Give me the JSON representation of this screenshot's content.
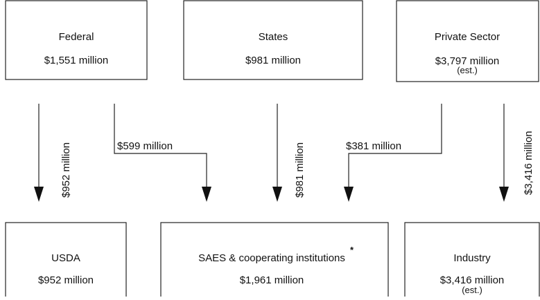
{
  "sources": [
    {
      "label": "Federal",
      "amount": "$1,551 million"
    },
    {
      "label": "States",
      "amount": "$981 million"
    },
    {
      "label": "Private Sector",
      "amount": "$3,797 million",
      "note": "(est.)"
    }
  ],
  "recipients": [
    {
      "label": "USDA",
      "amount": "$952 million"
    },
    {
      "label": "SAES & cooperating institutions",
      "mark": "*",
      "amount": "$1,961 million"
    },
    {
      "label": "Industry",
      "amount": "$3,416 million",
      "note": "(est.)"
    }
  ],
  "flows": [
    {
      "label": "$952 million"
    },
    {
      "label": "$599 million"
    },
    {
      "label": "$981 million"
    },
    {
      "label": "$381 million"
    },
    {
      "label": "$3,416 million"
    }
  ]
}
